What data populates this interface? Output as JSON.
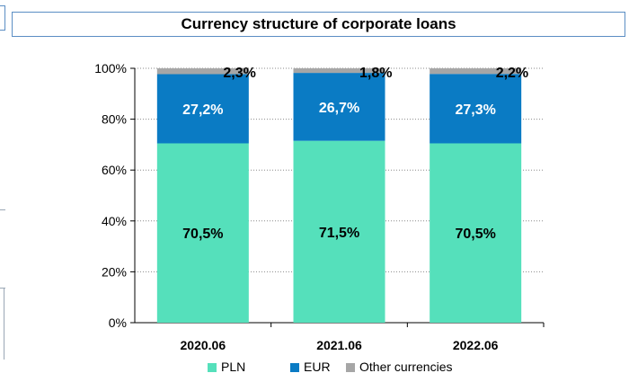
{
  "title": "Currency structure of corporate loans",
  "chart_data": {
    "type": "bar",
    "stacked": true,
    "title": "Currency structure of corporate loans",
    "categories": [
      "2020.06",
      "2021.06",
      "2022.06"
    ],
    "series": [
      {
        "name": "PLN",
        "values": [
          70.5,
          71.5,
          70.5
        ],
        "labels": [
          "70,5%",
          "71,5%",
          "70,5%"
        ],
        "color": "#55e0bb"
      },
      {
        "name": "EUR",
        "values": [
          27.2,
          26.7,
          27.3
        ],
        "labels": [
          "27,2%",
          "26,7%",
          "27,3%"
        ],
        "color": "#0a7bc4"
      },
      {
        "name": "Other currencies",
        "values": [
          2.3,
          1.8,
          2.2
        ],
        "labels": [
          "2,3%",
          "1,8%",
          "2,2%"
        ],
        "color": "#a6a6a6"
      }
    ],
    "y_ticks": [
      "0%",
      "20%",
      "40%",
      "60%",
      "80%",
      "100%"
    ],
    "ylim": [
      0,
      100
    ],
    "grid": true,
    "legend_position": "bottom"
  }
}
